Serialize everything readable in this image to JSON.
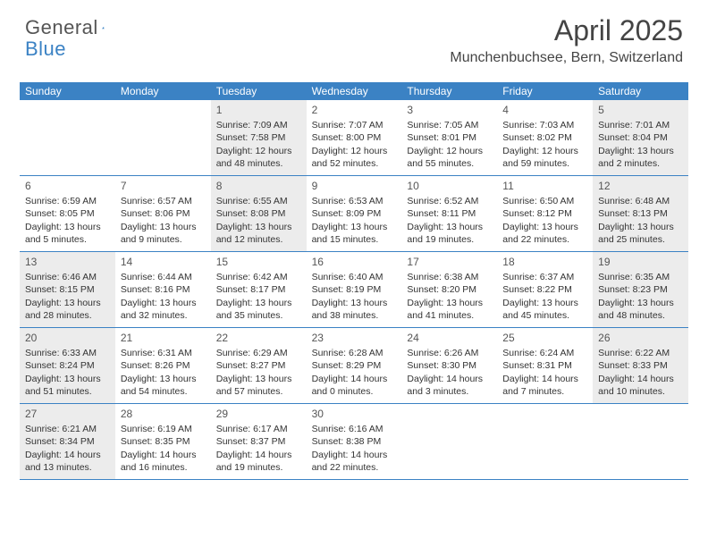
{
  "logo": {
    "text1": "General",
    "text2": "Blue"
  },
  "title": "April 2025",
  "location": "Munchenbuchsee, Bern, Switzerland",
  "colors": {
    "header_bg": "#3b82c4",
    "header_text": "#ffffff",
    "shade_bg": "#ececec",
    "text": "#333333",
    "border": "#3b82c4"
  },
  "typography": {
    "title_fontsize": 32,
    "location_fontsize": 16,
    "dayheader_fontsize": 12,
    "cell_fontsize": 10.5
  },
  "day_names": [
    "Sunday",
    "Monday",
    "Tuesday",
    "Wednesday",
    "Thursday",
    "Friday",
    "Saturday"
  ],
  "weeks": [
    [
      {
        "empty": true
      },
      {
        "empty": true
      },
      {
        "day": 1,
        "shade": true,
        "sunrise": "7:09 AM",
        "sunset": "7:58 PM",
        "daylight": "12 hours and 48 minutes."
      },
      {
        "day": 2,
        "sunrise": "7:07 AM",
        "sunset": "8:00 PM",
        "daylight": "12 hours and 52 minutes."
      },
      {
        "day": 3,
        "sunrise": "7:05 AM",
        "sunset": "8:01 PM",
        "daylight": "12 hours and 55 minutes."
      },
      {
        "day": 4,
        "sunrise": "7:03 AM",
        "sunset": "8:02 PM",
        "daylight": "12 hours and 59 minutes."
      },
      {
        "day": 5,
        "shade": true,
        "sunrise": "7:01 AM",
        "sunset": "8:04 PM",
        "daylight": "13 hours and 2 minutes."
      }
    ],
    [
      {
        "day": 6,
        "sunrise": "6:59 AM",
        "sunset": "8:05 PM",
        "daylight": "13 hours and 5 minutes."
      },
      {
        "day": 7,
        "sunrise": "6:57 AM",
        "sunset": "8:06 PM",
        "daylight": "13 hours and 9 minutes."
      },
      {
        "day": 8,
        "shade": true,
        "sunrise": "6:55 AM",
        "sunset": "8:08 PM",
        "daylight": "13 hours and 12 minutes."
      },
      {
        "day": 9,
        "sunrise": "6:53 AM",
        "sunset": "8:09 PM",
        "daylight": "13 hours and 15 minutes."
      },
      {
        "day": 10,
        "sunrise": "6:52 AM",
        "sunset": "8:11 PM",
        "daylight": "13 hours and 19 minutes."
      },
      {
        "day": 11,
        "sunrise": "6:50 AM",
        "sunset": "8:12 PM",
        "daylight": "13 hours and 22 minutes."
      },
      {
        "day": 12,
        "shade": true,
        "sunrise": "6:48 AM",
        "sunset": "8:13 PM",
        "daylight": "13 hours and 25 minutes."
      }
    ],
    [
      {
        "day": 13,
        "shade": true,
        "sunrise": "6:46 AM",
        "sunset": "8:15 PM",
        "daylight": "13 hours and 28 minutes."
      },
      {
        "day": 14,
        "sunrise": "6:44 AM",
        "sunset": "8:16 PM",
        "daylight": "13 hours and 32 minutes."
      },
      {
        "day": 15,
        "sunrise": "6:42 AM",
        "sunset": "8:17 PM",
        "daylight": "13 hours and 35 minutes."
      },
      {
        "day": 16,
        "sunrise": "6:40 AM",
        "sunset": "8:19 PM",
        "daylight": "13 hours and 38 minutes."
      },
      {
        "day": 17,
        "sunrise": "6:38 AM",
        "sunset": "8:20 PM",
        "daylight": "13 hours and 41 minutes."
      },
      {
        "day": 18,
        "sunrise": "6:37 AM",
        "sunset": "8:22 PM",
        "daylight": "13 hours and 45 minutes."
      },
      {
        "day": 19,
        "shade": true,
        "sunrise": "6:35 AM",
        "sunset": "8:23 PM",
        "daylight": "13 hours and 48 minutes."
      }
    ],
    [
      {
        "day": 20,
        "shade": true,
        "sunrise": "6:33 AM",
        "sunset": "8:24 PM",
        "daylight": "13 hours and 51 minutes."
      },
      {
        "day": 21,
        "sunrise": "6:31 AM",
        "sunset": "8:26 PM",
        "daylight": "13 hours and 54 minutes."
      },
      {
        "day": 22,
        "sunrise": "6:29 AM",
        "sunset": "8:27 PM",
        "daylight": "13 hours and 57 minutes."
      },
      {
        "day": 23,
        "sunrise": "6:28 AM",
        "sunset": "8:29 PM",
        "daylight": "14 hours and 0 minutes."
      },
      {
        "day": 24,
        "sunrise": "6:26 AM",
        "sunset": "8:30 PM",
        "daylight": "14 hours and 3 minutes."
      },
      {
        "day": 25,
        "sunrise": "6:24 AM",
        "sunset": "8:31 PM",
        "daylight": "14 hours and 7 minutes."
      },
      {
        "day": 26,
        "shade": true,
        "sunrise": "6:22 AM",
        "sunset": "8:33 PM",
        "daylight": "14 hours and 10 minutes."
      }
    ],
    [
      {
        "day": 27,
        "shade": true,
        "sunrise": "6:21 AM",
        "sunset": "8:34 PM",
        "daylight": "14 hours and 13 minutes."
      },
      {
        "day": 28,
        "sunrise": "6:19 AM",
        "sunset": "8:35 PM",
        "daylight": "14 hours and 16 minutes."
      },
      {
        "day": 29,
        "sunrise": "6:17 AM",
        "sunset": "8:37 PM",
        "daylight": "14 hours and 19 minutes."
      },
      {
        "day": 30,
        "sunrise": "6:16 AM",
        "sunset": "8:38 PM",
        "daylight": "14 hours and 22 minutes."
      },
      {
        "empty": true
      },
      {
        "empty": true
      },
      {
        "empty": true
      }
    ]
  ],
  "labels": {
    "sunrise_prefix": "Sunrise: ",
    "sunset_prefix": "Sunset: ",
    "daylight_prefix": "Daylight: "
  }
}
